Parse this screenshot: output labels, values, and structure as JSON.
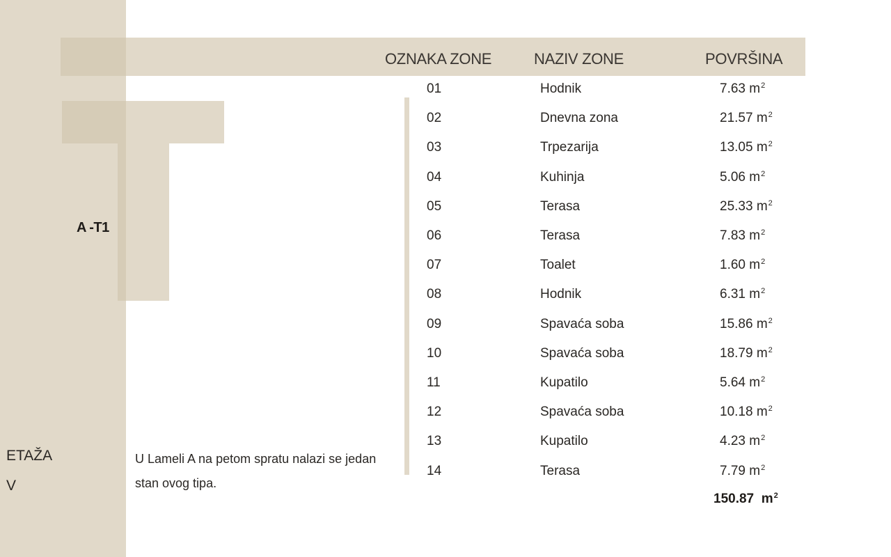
{
  "unit": {
    "code": "A -T1"
  },
  "floor": {
    "label": "ETAŽA",
    "value": "V"
  },
  "description": "U Lameli A na petom spratu nalazi se jedan stan ovog tipa.",
  "table": {
    "headers": {
      "code": "OZNAKA ZONE",
      "name": "NAZIV ZONE",
      "area": "POVRŠINA"
    },
    "unit_suffix": "m",
    "unit_exponent": "2",
    "rows": [
      {
        "code": "01",
        "name": "Hodnik",
        "area": "7.63"
      },
      {
        "code": "02",
        "name": "Dnevna zona",
        "area": "21.57"
      },
      {
        "code": "03",
        "name": "Trpezarija",
        "area": "13.05"
      },
      {
        "code": "04",
        "name": "Kuhinja",
        "area": "5.06"
      },
      {
        "code": "05",
        "name": "Terasa",
        "area": "25.33"
      },
      {
        "code": "06",
        "name": "Terasa",
        "area": "7.83"
      },
      {
        "code": "07",
        "name": "Toalet",
        "area": "1.60"
      },
      {
        "code": "08",
        "name": "Hodnik",
        "area": "6.31"
      },
      {
        "code": "09",
        "name": "Spavaća soba",
        "area": "15.86"
      },
      {
        "code": "10",
        "name": "Spavaća soba",
        "area": "18.79"
      },
      {
        "code": "11",
        "name": "Kupatilo",
        "area": "5.64"
      },
      {
        "code": "12",
        "name": "Spavaća soba",
        "area": "10.18"
      },
      {
        "code": "13",
        "name": "Kupatilo",
        "area": "4.23"
      },
      {
        "code": "14",
        "name": "Terasa",
        "area": "7.79"
      }
    ],
    "total": "150.87"
  },
  "colors": {
    "band": "#e1d9c9",
    "band_overlap": "#d6ccb7",
    "text": "#2a2724"
  }
}
